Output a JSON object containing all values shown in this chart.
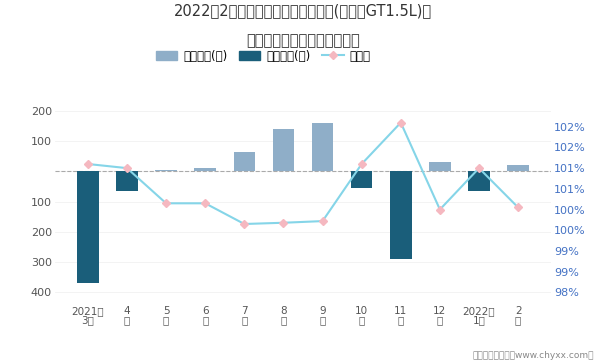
{
  "title_line1": "2022年2月别克英朗旗下最畅销轿车(新英朗GT1.5L)近",
  "title_line2": "一年库存情况及产销率统计图",
  "categories_line1": [
    "2021年",
    "4",
    "5",
    "6",
    "7",
    "8",
    "9",
    "10",
    "11",
    "12",
    "2022年",
    "2"
  ],
  "categories_line2": [
    "3月",
    "月",
    "月",
    "月",
    "月",
    "月",
    "月",
    "月",
    "月",
    "月",
    "1月",
    "月"
  ],
  "bar_positive": [
    0,
    0,
    5,
    12,
    65,
    140,
    160,
    0,
    0,
    30,
    0,
    20
  ],
  "bar_negative": [
    -370,
    -65,
    0,
    0,
    0,
    0,
    0,
    -55,
    -290,
    0,
    -65,
    0
  ],
  "line_values": [
    101.1,
    101.0,
    100.15,
    100.15,
    99.65,
    99.68,
    99.72,
    101.1,
    102.1,
    100.0,
    101.0,
    100.05
  ],
  "bar_positive_color": "#8faec8",
  "bar_negative_color": "#1a5e7a",
  "line_color": "#85d5e8",
  "marker_color": "#f5b8c0",
  "background_color": "#ffffff",
  "ylim_left": [
    -420,
    230
  ],
  "ylim_right": [
    97.85,
    102.6
  ],
  "yticks_left_vals": [
    -400,
    -300,
    -200,
    -100,
    0,
    100,
    200
  ],
  "yticks_left_labels": [
    "400",
    "300",
    "200",
    "100",
    "",
    "100",
    "200"
  ],
  "yticks_right_vals": [
    98.0,
    98.5,
    99.0,
    99.5,
    100.0,
    100.5,
    101.0,
    101.5,
    102.0
  ],
  "yticks_right_labels": [
    "98%",
    "99%",
    "99%",
    "100%",
    "100%",
    "101%",
    "101%",
    "102%",
    "102%"
  ],
  "legend_labels": [
    "积压库存(辆)",
    "清仓库存(辆)",
    "产销率"
  ],
  "footnote": "制图：智研咨询（www.chyxx.com）"
}
